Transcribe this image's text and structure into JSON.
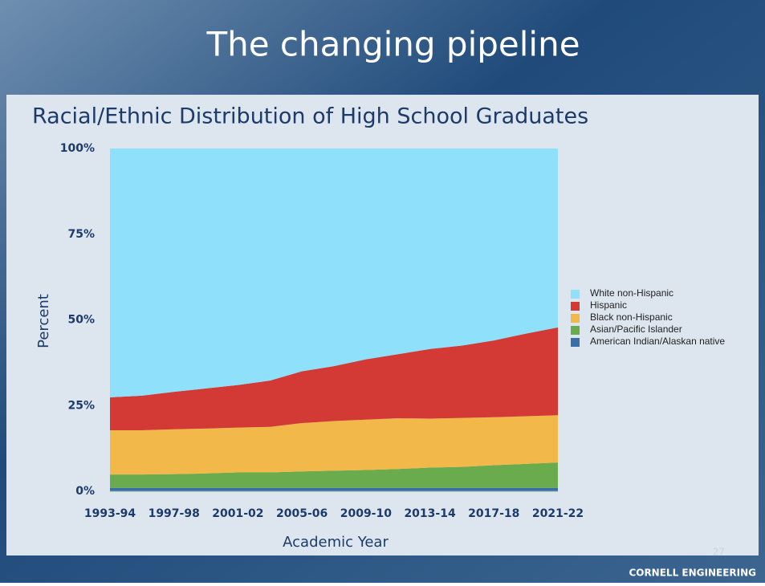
{
  "slide": {
    "title": "The changing pipeline",
    "page_number": "27",
    "footer": "CORNELL ENGINEERING"
  },
  "chart_data": {
    "type": "stacked-area",
    "title": "Racial/Ethnic Distribution of High School Graduates",
    "xlabel": "Academic Year",
    "ylabel": "Percent",
    "categories": [
      "1993-94",
      null,
      "1997-98",
      null,
      "2001-02",
      null,
      "2005-06",
      null,
      "2009-10",
      null,
      "2013-14",
      null,
      "2017-18",
      null,
      "2021-22"
    ],
    "ylim": [
      0,
      100
    ],
    "yticks": [
      {
        "value": 0,
        "label": "0%"
      },
      {
        "value": 25,
        "label": "25%"
      },
      {
        "value": 50,
        "label": "50%"
      },
      {
        "value": 75,
        "label": "75%"
      },
      {
        "value": 100,
        "label": "100%"
      }
    ],
    "legend": "right",
    "series": [
      {
        "name": "White non-Hispanic",
        "color": "#8fe0fb",
        "values": [
          72.6,
          72.1,
          71.0,
          70.0,
          69.0,
          67.7,
          65.0,
          63.5,
          61.5,
          60.0,
          58.5,
          57.5,
          56.0,
          54.0,
          52.2
        ]
      },
      {
        "name": "Hispanic",
        "color": "#d33a35",
        "values": [
          9.6,
          10.1,
          10.9,
          11.7,
          12.4,
          13.5,
          15.1,
          16.0,
          17.6,
          18.7,
          20.3,
          21.1,
          22.4,
          24.1,
          25.6
        ]
      },
      {
        "name": "Black non-Hispanic",
        "color": "#f2b84a",
        "values": [
          12.9,
          12.9,
          13.1,
          13.1,
          13.1,
          13.3,
          14.1,
          14.5,
          14.7,
          14.8,
          14.3,
          14.3,
          14.0,
          13.9,
          13.8
        ]
      },
      {
        "name": "Asian/Pacific Islander",
        "color": "#6aab4e",
        "values": [
          3.9,
          3.9,
          4.0,
          4.2,
          4.5,
          4.5,
          4.8,
          5.0,
          5.2,
          5.5,
          5.9,
          6.1,
          6.6,
          7.0,
          7.4
        ]
      },
      {
        "name": "American Indian/Alaskan native",
        "color": "#3a6ea8",
        "values": [
          1.0,
          1.0,
          1.0,
          1.0,
          1.0,
          1.0,
          1.0,
          1.0,
          1.0,
          1.0,
          1.0,
          1.0,
          1.0,
          1.0,
          1.0
        ]
      }
    ]
  }
}
